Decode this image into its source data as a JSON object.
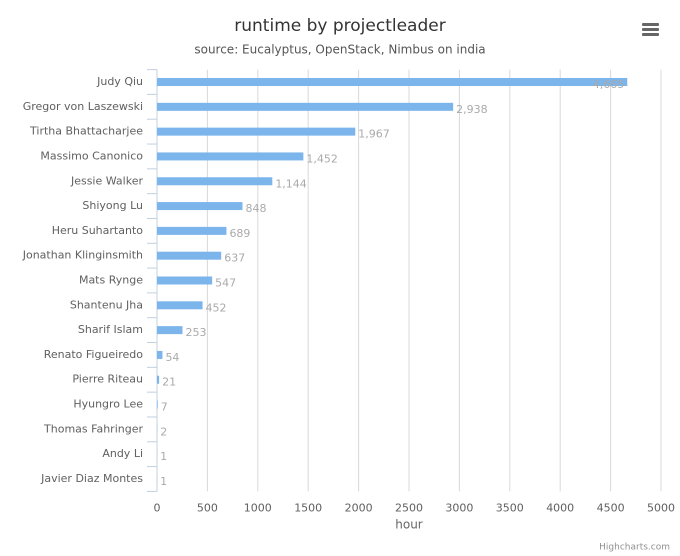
{
  "chart_data": {
    "type": "bar",
    "orientation": "horizontal",
    "title": "runtime by projectleader",
    "subtitle": "source: Eucalyptus, OpenStack, Nimbus on india",
    "categories": [
      "Judy Qiu",
      "Gregor von Laszewski",
      "Tirtha Bhattacharjee",
      "Massimo Canonico",
      "Jessie Walker",
      "Shiyong Lu",
      "Heru Suhartanto",
      "Jonathan Klinginsmith",
      "Mats Rynge",
      "Shantenu Jha",
      "Sharif Islam",
      "Renato Figueiredo",
      "Pierre Riteau",
      "Hyungro Lee",
      "Thomas Fahringer",
      "Andy Li",
      "Javier Diaz Montes"
    ],
    "values": [
      4665,
      2938,
      1967,
      1452,
      1144,
      848,
      689,
      637,
      547,
      452,
      253,
      54,
      21,
      7,
      2,
      1,
      1
    ],
    "value_labels": [
      "4,665",
      "2,938",
      "1,967",
      "1,452",
      "1,144",
      "848",
      "689",
      "637",
      "547",
      "452",
      "253",
      "54",
      "21",
      "7",
      "2",
      "1",
      "1"
    ],
    "color": "#7cb5ec",
    "xlabel": "hour",
    "xlim": [
      0,
      5000
    ],
    "xticks": [
      0,
      500,
      1000,
      1500,
      2000,
      2500,
      3000,
      3500,
      4000,
      4500,
      5000
    ],
    "grid": true,
    "credits": "Highcharts.com"
  }
}
